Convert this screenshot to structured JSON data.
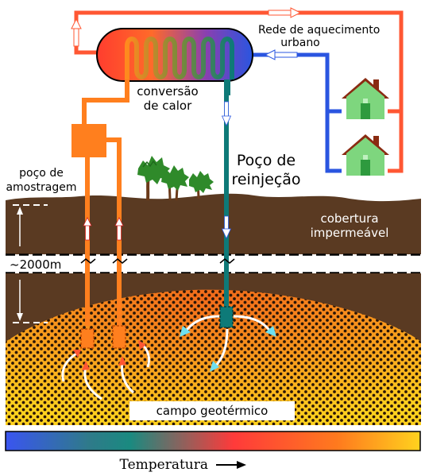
{
  "labels": {
    "district_heating": [
      "Rede de aquecimento",
      "urbano"
    ],
    "heat_conversion": [
      "conversão",
      "de calor"
    ],
    "reinjection_well": [
      "Poço de",
      "reinjeção"
    ],
    "sampling_well": [
      "poço de",
      "amostragem"
    ],
    "cap_rock": [
      "cobertura",
      "impermeável"
    ],
    "depth": "~2000m",
    "geothermal_field": "campo geotérmico",
    "temperature": "Temperatura"
  },
  "colors": {
    "hot": "#ff5733",
    "cold": "#2a55e0",
    "pipe_orange": "#ff7f1e",
    "pipe_teal": "#0e7a78",
    "soil": "#5a3a22",
    "field_orange": "#f7841c",
    "field_yellow": "#ffd21e",
    "house_green": "#7ed67e",
    "roof": "#8a2b12"
  },
  "icons": [
    "house-icon",
    "tree-icon",
    "arrow-right-icon"
  ]
}
